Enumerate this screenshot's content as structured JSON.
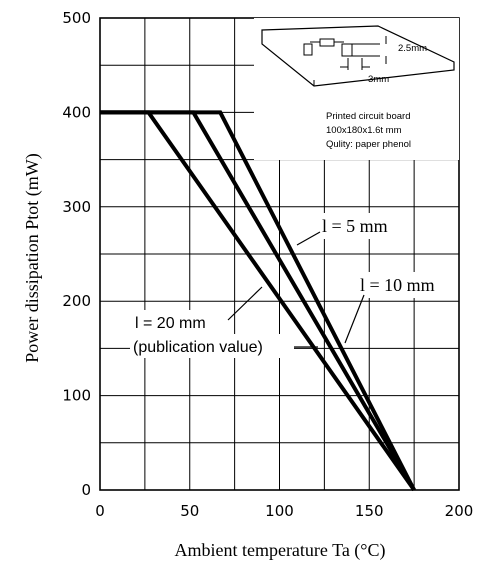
{
  "chart_data": {
    "type": "line",
    "xlabel": "Ambient temperature Ta (°C)",
    "ylabel": "Power dissipation Ptot (mW)",
    "xlim": [
      0,
      200
    ],
    "ylim": [
      0,
      500
    ],
    "x_ticks": [
      "0",
      "50",
      "100",
      "150",
      "200"
    ],
    "y_ticks": [
      "0",
      "100",
      "200",
      "300",
      "400",
      "500"
    ],
    "grid": true,
    "series": [
      {
        "name": "l = 5 mm",
        "x": [
          0,
          67,
          175
        ],
        "y": [
          400,
          400,
          0
        ]
      },
      {
        "name": "l = 10 mm",
        "x": [
          0,
          52,
          175
        ],
        "y": [
          400,
          400,
          0
        ]
      },
      {
        "name": "l = 20 mm (publication value)",
        "x": [
          0,
          27,
          175
        ],
        "y": [
          400,
          400,
          0
        ]
      }
    ],
    "annotations": {
      "label_5mm": "l = 5 mm",
      "label_10mm": "l = 10 mm",
      "label_20mm_line1": "l = 20 mm",
      "label_20mm_line2": "(publication value)"
    },
    "inset": {
      "line1": "Printed circuit board",
      "line2": "100x180x1.6t mm",
      "line3": "Qulity: paper phenol",
      "dim1": "2.5mm",
      "dim2": "3mm"
    }
  }
}
